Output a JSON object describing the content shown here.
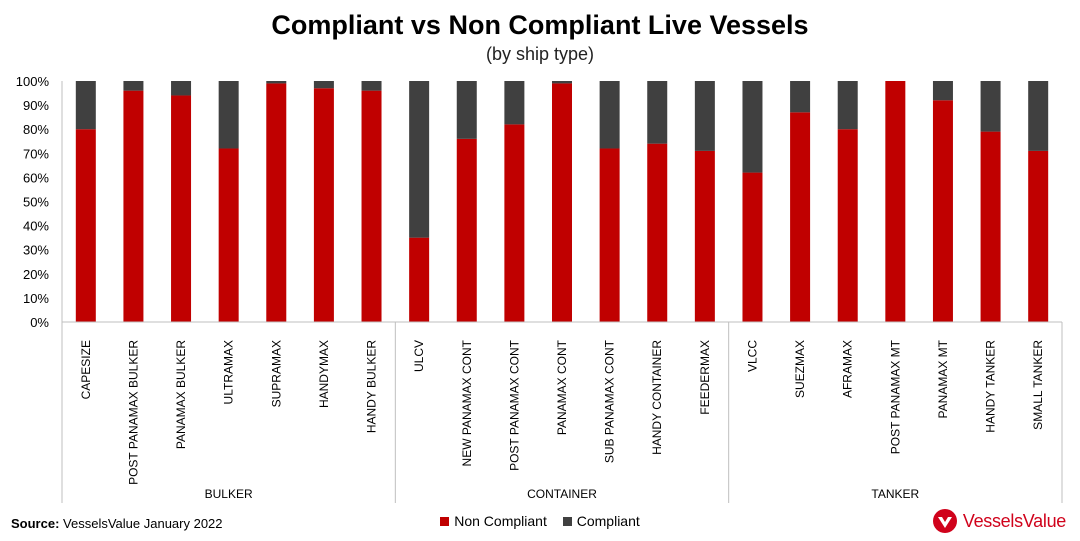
{
  "title": "Compliant vs Non Compliant Live Vessels",
  "subtitle": "(by ship type)",
  "source_label": "Source:",
  "source_text": "VesselsValue January 2022",
  "logo_text": "VesselsValue",
  "colors": {
    "non_compliant": "#c00000",
    "compliant": "#404040",
    "brand": "#d0021b"
  },
  "chart_data": {
    "type": "bar",
    "stacked": true,
    "percent": true,
    "ylim": [
      0,
      100
    ],
    "yticks": [
      "0%",
      "10%",
      "20%",
      "30%",
      "40%",
      "50%",
      "60%",
      "70%",
      "80%",
      "90%",
      "100%"
    ],
    "categories": [
      "CAPESIZE",
      "POST PANAMAX BULKER",
      "PANAMAX BULKER",
      "ULTRAMAX",
      "SUPRAMAX",
      "HANDYMAX",
      "HANDY BULKER",
      "ULCV",
      "NEW PANAMAX CONT",
      "POST PANAMAX CONT",
      "PANAMAX CONT",
      "SUB PANAMAX CONT",
      "HANDY CONTAINER",
      "FEEDERMAX",
      "VLCC",
      "SUEZMAX",
      "AFRAMAX",
      "POST PANAMAX MT",
      "PANAMAX MT",
      "HANDY TANKER",
      "SMALL TANKER"
    ],
    "groups": [
      {
        "name": "BULKER",
        "count": 7
      },
      {
        "name": "CONTAINER",
        "count": 7
      },
      {
        "name": "TANKER",
        "count": 7
      }
    ],
    "series": [
      {
        "name": "Non Compliant",
        "values": [
          80,
          96,
          94,
          72,
          99,
          97,
          96,
          35,
          76,
          82,
          99,
          72,
          74,
          71,
          62,
          87,
          80,
          100,
          92,
          79,
          71
        ]
      },
      {
        "name": "Compliant",
        "values": [
          20,
          4,
          6,
          28,
          1,
          3,
          4,
          65,
          24,
          18,
          1,
          28,
          26,
          29,
          38,
          13,
          20,
          0,
          8,
          21,
          29
        ]
      }
    ],
    "legend": "bottom-center",
    "grid": false
  }
}
